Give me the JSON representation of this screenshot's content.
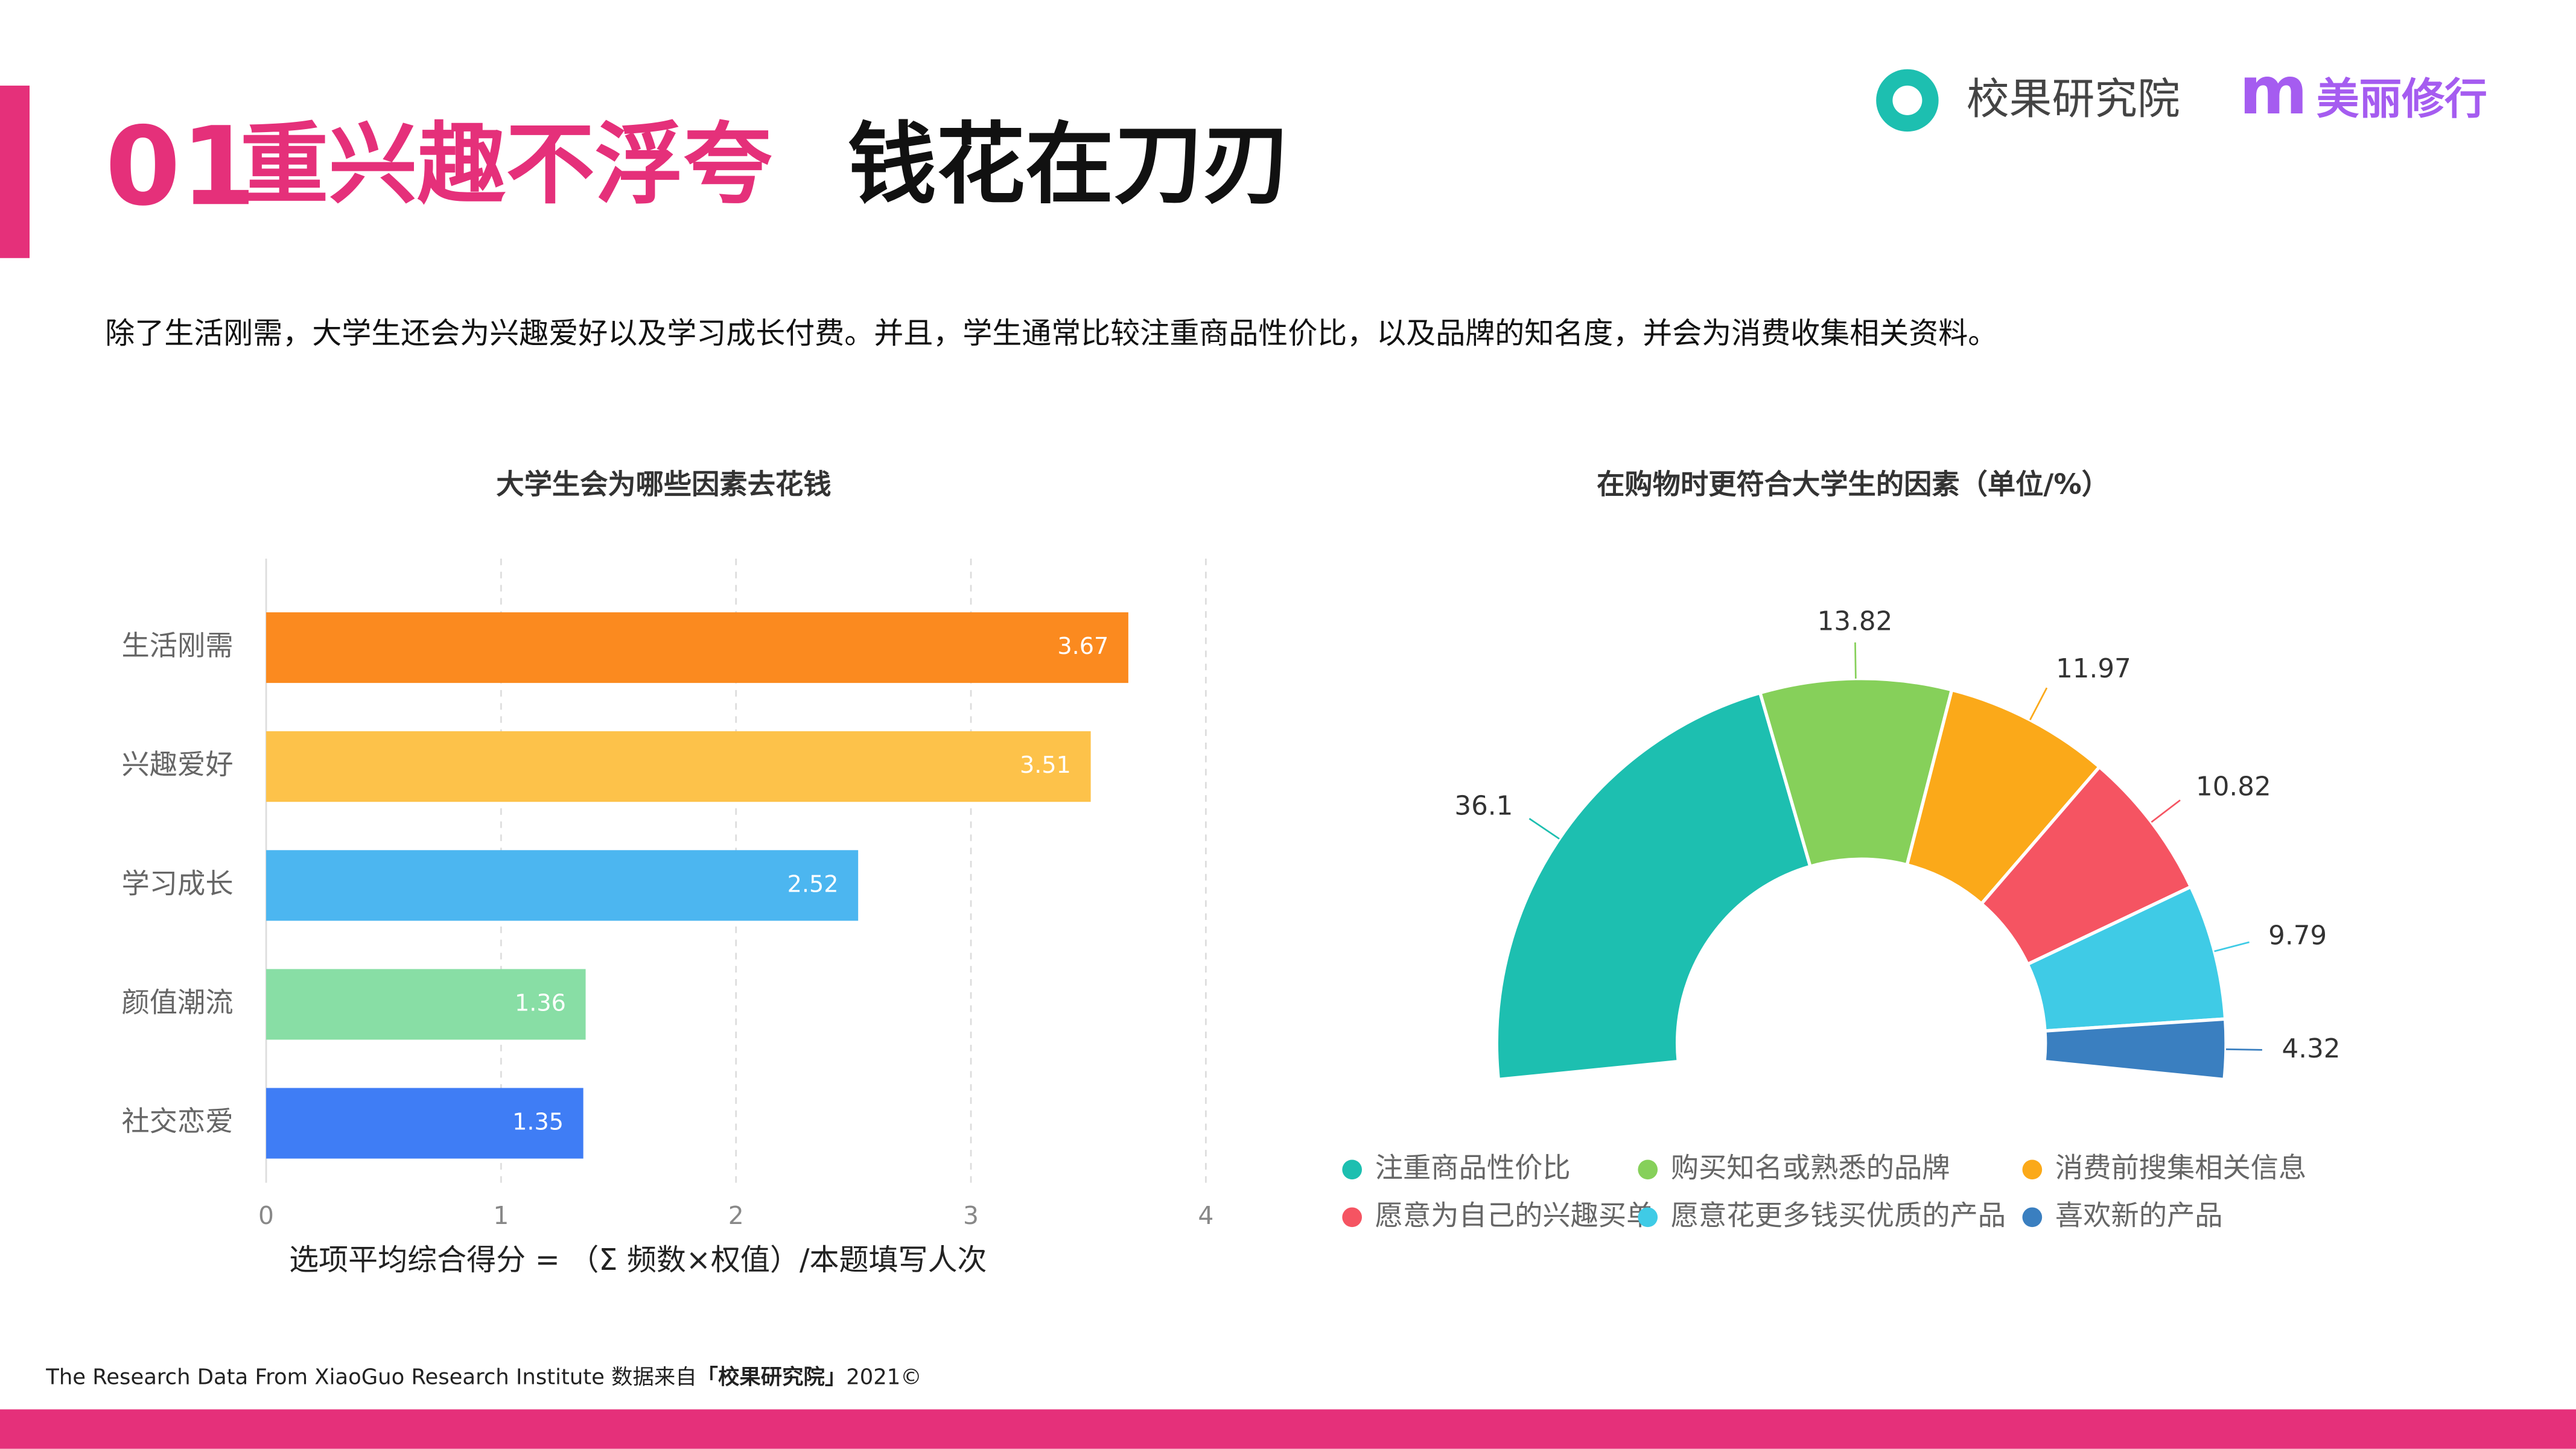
{
  "header": {
    "number": "01",
    "title_highlight": "重兴趣不浮夸",
    "title_rest": "钱花在刀刃",
    "logo": "校果研究院",
    "brand_mark": "m",
    "brand": "美丽修行"
  },
  "description": "除了生活刚需，大学生还会为兴趣爱好以及学习成长付费。并且，学生通常比较注重商品性价比，以及品牌的知名度，并会为消费收集相关资料。",
  "footer": {
    "source": "The Research Data From XiaoGuo Research Institute 数据来自",
    "org": "「校果研究院」",
    "year": "2021©"
  },
  "chart_data": [
    {
      "type": "bar",
      "orientation": "horizontal",
      "title": "大学生会为哪些因素去花钱",
      "categories": [
        "生活刚需",
        "兴趣爱好",
        "学习成长",
        "颜值潮流",
        "社交恋爱"
      ],
      "values": [
        3.67,
        3.51,
        2.52,
        1.36,
        1.35
      ],
      "colors": [
        "#fb8a1f",
        "#fdc24a",
        "#4cb6f0",
        "#88dea5",
        "#3f7df5"
      ],
      "xlim": [
        0,
        4
      ],
      "xticks": [
        0,
        1,
        2,
        3,
        4
      ],
      "grid": true,
      "x_label": "选项平均综合得分 = （Σ 频数×权值）/本题填写人次"
    },
    {
      "type": "pie",
      "donut": true,
      "half": true,
      "title": "在购物时更符合大学生的因素（单位/%）",
      "categories": [
        "注重商品性价比",
        "购买知名或熟悉的品牌",
        "消费前搜集相关信息",
        "愿意为自己的兴趣买单",
        "愿意花更多钱买优质的产品",
        "喜欢新的产品"
      ],
      "values": [
        36.1,
        13.82,
        11.97,
        10.82,
        9.79,
        4.32
      ],
      "colors": [
        "#1dbfb0",
        "#86d05a",
        "#fba919",
        "#f55462",
        "#3fcbe6",
        "#3a7fc0"
      ],
      "legend": "bottom"
    }
  ]
}
